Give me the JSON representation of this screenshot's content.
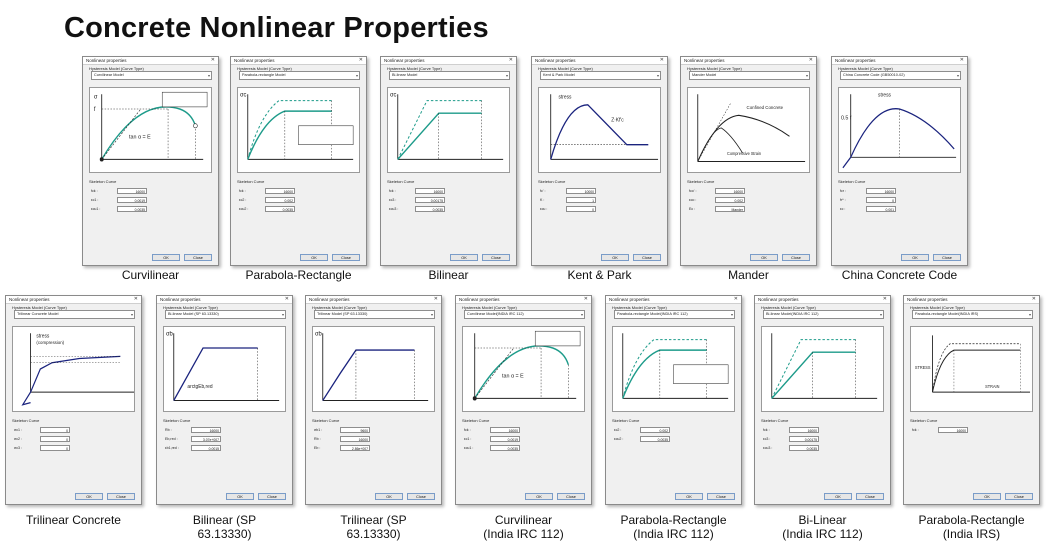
{
  "title": "Concrete Nonlinear Properties",
  "dialog": {
    "title": "Nonlinear properties",
    "group_label": "Hysteresis Model (Curve Type)",
    "skeleton_label": "Skeleton Curve",
    "ok": "OK",
    "close": "Close"
  },
  "panels": [
    {
      "caption": "Curvilinear",
      "model": "Curvilinear Model",
      "fields": [
        [
          "fck",
          "16000"
        ],
        [
          "εc1",
          "0.0019"
        ],
        [
          "εcu1",
          "0.0035"
        ]
      ]
    },
    {
      "caption": "Parabola-Rectangle",
      "model": "Parabola-rectangle Model",
      "fields": [
        [
          "fck",
          "16000"
        ],
        [
          "εc2",
          "0.002"
        ],
        [
          "εcu2",
          "0.0035"
        ]
      ]
    },
    {
      "caption": "Bilinear",
      "model": "Bi-linear Model",
      "fields": [
        [
          "fck",
          "16000"
        ],
        [
          "εc3",
          "0.00175"
        ],
        [
          "εcu3",
          "0.0035"
        ]
      ]
    },
    {
      "caption": "Kent & Park",
      "model": "Kent & Park Model",
      "fields": [
        [
          "fc'",
          "10000"
        ],
        [
          "K",
          "1"
        ],
        [
          "εcu",
          "0"
        ]
      ]
    },
    {
      "caption": "Mander",
      "model": "Mander Model",
      "fields": [
        [
          "fco'",
          "16000"
        ],
        [
          "εco",
          "0.002"
        ],
        [
          "Ec",
          "Mander"
        ]
      ]
    },
    {
      "caption": "China Concrete Code",
      "model": "China Concrete Code (GB50010-02)",
      "fields": [
        [
          "fcr",
          "16000"
        ],
        [
          "fr*",
          "0"
        ],
        [
          "εc",
          "0.001"
        ]
      ]
    },
    {
      "caption": "Trilinear Concrete",
      "model": "Trilinear Concrete Model",
      "fields": [
        [
          "σc1",
          "0"
        ],
        [
          "σc2",
          "0"
        ],
        [
          "σc3",
          "0"
        ]
      ]
    },
    {
      "caption": "Bilinear (SP\n63.13330)",
      "model": "Bi-linear Model (SP 63.13330)",
      "fields": [
        [
          "Rb",
          "16000"
        ],
        [
          "Eb,red",
          "3.07e+007"
        ],
        [
          "εb1,red",
          "0.0015"
        ]
      ]
    },
    {
      "caption": "Trilinear (SP\n63.13330)",
      "model": "Trilinear Model (SP 63.13330)",
      "fields": [
        [
          "σb1",
          "9600"
        ],
        [
          "Rb",
          "16000"
        ],
        [
          "Eb",
          "2.86e+007"
        ]
      ]
    },
    {
      "caption": "Curvilinear\n(India IRC 112)",
      "model": "Curvilinear Model(INDIA IRC 112)",
      "fields": [
        [
          "fck",
          "16000"
        ],
        [
          "εc1",
          "0.0019"
        ],
        [
          "εcu1",
          "0.0035"
        ]
      ]
    },
    {
      "caption": "Parabola-Rectangle\n(India IRC 112)",
      "model": "Parabola-rectangle Model(INDIA IRC 112)",
      "fields": [
        [
          "εc2",
          "0.002"
        ],
        [
          "εcu2",
          "0.0035"
        ]
      ]
    },
    {
      "caption": "Bi-Linear\n(India IRC 112)",
      "model": "Bi-linear Model(INDIA IRC 112)",
      "fields": [
        [
          "fck",
          "16000"
        ],
        [
          "εc3",
          "0.00175"
        ],
        [
          "εcu3",
          "0.0035"
        ]
      ]
    },
    {
      "caption": "Parabola-Rectangle\n(India IRS)",
      "model": "Parabola-rectangle Model(INDIA IRS)",
      "fields": [
        [
          "fck",
          "16000"
        ]
      ]
    }
  ]
}
